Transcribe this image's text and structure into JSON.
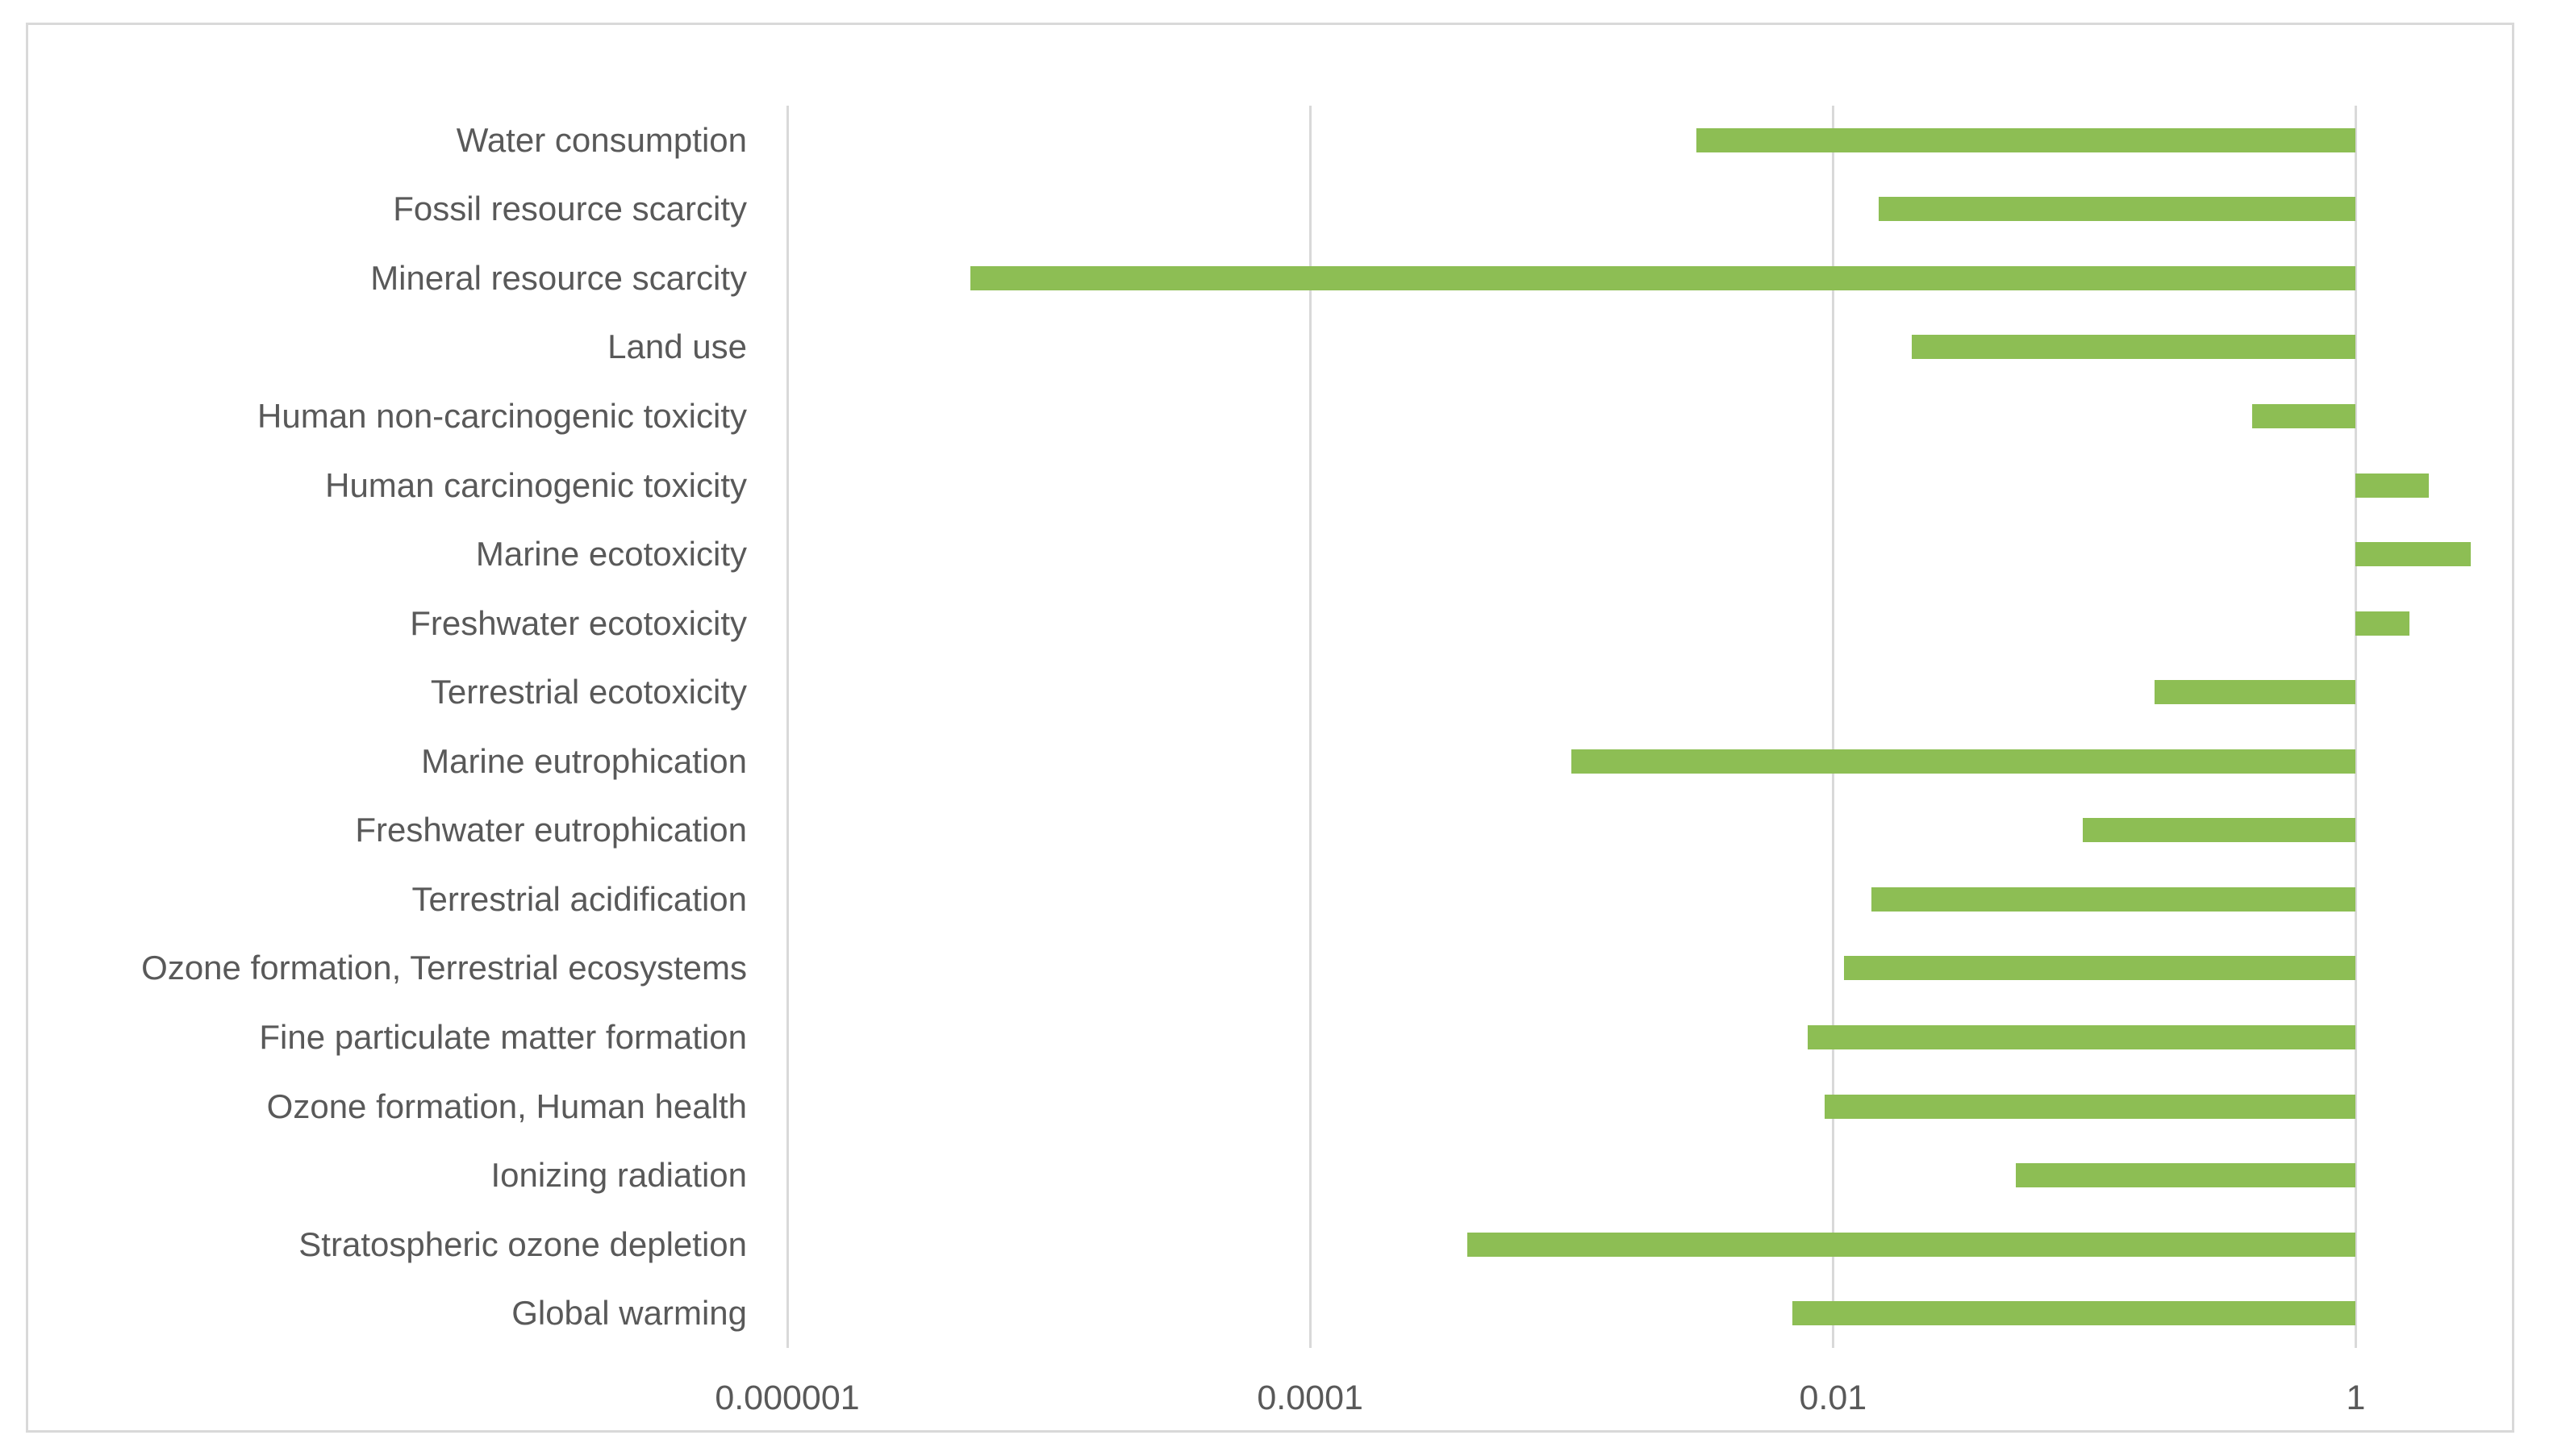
{
  "chart_data": {
    "type": "bar",
    "orientation": "horizontal",
    "x_scale": "log",
    "title": "",
    "legend": "none",
    "grid": "vertical-major",
    "baseline": 1,
    "categories": [
      "Water consumption",
      "Fossil resource scarcity",
      "Mineral resource scarcity",
      "Land use",
      "Human non-carcinogenic toxicity",
      "Human carcinogenic toxicity",
      "Marine ecotoxicity",
      "Freshwater ecotoxicity",
      "Terrestrial ecotoxicity",
      "Marine eutrophication",
      "Freshwater eutrophication",
      "Terrestrial acidification",
      "Ozone formation, Terrestrial ecosystems",
      "Fine particulate matter formation",
      "Ozone formation, Human health",
      "Ionizing radiation",
      "Stratospheric ozone depletion",
      "Global warming"
    ],
    "values": [
      0.003,
      0.015,
      5e-06,
      0.02,
      0.4,
      1.9,
      2.75,
      1.6,
      0.17,
      0.001,
      0.09,
      0.014,
      0.011,
      0.008,
      0.0093,
      0.05,
      0.0004,
      0.007
    ],
    "x_axis": {
      "min": 1e-06,
      "max": 5,
      "ticks": [
        {
          "label": "0.000001",
          "value": 1e-06
        },
        {
          "label": "0.0001",
          "value": 0.0001
        },
        {
          "label": "0.01",
          "value": 0.01
        },
        {
          "label": "1",
          "value": 1
        }
      ]
    },
    "bar_color": "#8DBE54",
    "gridline_color": "#D9D9D9",
    "text_color": "#595959",
    "frame_border_color": "#D9D9D9",
    "background_color": "#FFFFFF"
  }
}
